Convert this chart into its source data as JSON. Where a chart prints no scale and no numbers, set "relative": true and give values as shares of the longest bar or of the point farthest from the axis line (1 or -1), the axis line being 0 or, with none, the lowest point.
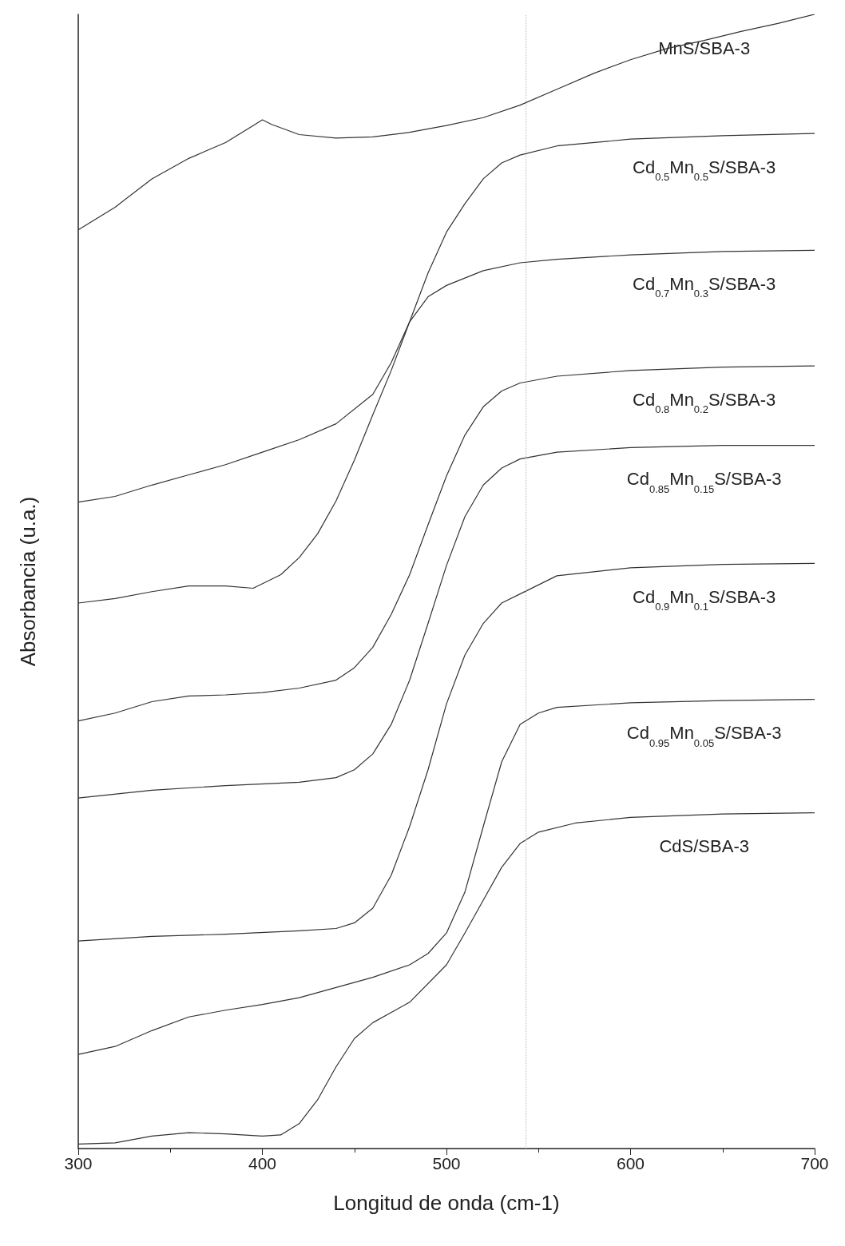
{
  "chart_data": {
    "type": "line",
    "relative": true,
    "xlabel": "Longitud de onda (cm-1)",
    "ylabel": "Absorbancia (u.a.)",
    "xlim": [
      300,
      700
    ],
    "xticks": [
      300,
      400,
      500,
      600,
      700
    ],
    "grid": false,
    "legend": false,
    "marker": "none",
    "line_style": "solid",
    "ref_lines": [
      {
        "axis": "x",
        "value": 543,
        "color": "#bbbbbb",
        "line_style": "dotted"
      }
    ],
    "series": [
      {
        "name": "MnS/SBA-3",
        "color": "#333333",
        "x": [
          300,
          320,
          340,
          360,
          380,
          395,
          400,
          405,
          420,
          440,
          460,
          480,
          500,
          520,
          540,
          560,
          580,
          600,
          620,
          640,
          660,
          680,
          700
        ],
        "values": [
          0.81,
          0.83,
          0.855,
          0.873,
          0.887,
          0.902,
          0.907,
          0.903,
          0.894,
          0.891,
          0.892,
          0.896,
          0.902,
          0.909,
          0.92,
          0.934,
          0.948,
          0.96,
          0.97,
          0.977,
          0.985,
          0.992,
          1
        ]
      },
      {
        "name": "Cd$_{0.5}$Mn$_{0.5}$S/SBA-3",
        "color": "#333333",
        "x": [
          300,
          320,
          340,
          360,
          380,
          395,
          410,
          420,
          430,
          440,
          450,
          460,
          470,
          480,
          490,
          500,
          510,
          520,
          530,
          540,
          560,
          600,
          650,
          700
        ],
        "values": [
          0.481,
          0.485,
          0.491,
          0.496,
          0.496,
          0.494,
          0.506,
          0.521,
          0.542,
          0.571,
          0.607,
          0.647,
          0.686,
          0.729,
          0.772,
          0.808,
          0.833,
          0.855,
          0.869,
          0.876,
          0.884,
          0.89,
          0.893,
          0.895
        ]
      },
      {
        "name": "Cd$_{0.7}$Mn$_{0.3}$S/SBA-3",
        "color": "#333333",
        "x": [
          300,
          320,
          340,
          360,
          380,
          400,
          420,
          440,
          460,
          470,
          480,
          490,
          500,
          520,
          540,
          560,
          600,
          650,
          700
        ],
        "values": [
          0.57,
          0.575,
          0.585,
          0.594,
          0.603,
          0.614,
          0.625,
          0.639,
          0.665,
          0.693,
          0.729,
          0.751,
          0.761,
          0.774,
          0.781,
          0.784,
          0.788,
          0.791,
          0.792
        ]
      },
      {
        "name": "Cd$_{0.8}$Mn$_{0.2}$S/SBA-3",
        "color": "#333333",
        "x": [
          300,
          320,
          340,
          360,
          380,
          400,
          420,
          440,
          450,
          460,
          470,
          480,
          490,
          500,
          510,
          520,
          530,
          540,
          560,
          600,
          650,
          700
        ],
        "values": [
          0.377,
          0.384,
          0.394,
          0.399,
          0.4,
          0.402,
          0.406,
          0.413,
          0.424,
          0.442,
          0.471,
          0.506,
          0.55,
          0.593,
          0.629,
          0.654,
          0.668,
          0.675,
          0.681,
          0.686,
          0.689,
          0.69
        ]
      },
      {
        "name": "Cd$_{0.85}$Mn$_{0.15}$S/SBA-3",
        "color": "#333333",
        "x": [
          300,
          340,
          380,
          420,
          440,
          450,
          460,
          470,
          480,
          490,
          500,
          510,
          520,
          530,
          540,
          560,
          600,
          650,
          700
        ],
        "values": [
          0.309,
          0.316,
          0.32,
          0.323,
          0.327,
          0.334,
          0.348,
          0.374,
          0.413,
          0.463,
          0.514,
          0.557,
          0.585,
          0.6,
          0.608,
          0.614,
          0.618,
          0.62,
          0.62
        ]
      },
      {
        "name": "Cd$_{0.9}$Mn$_{0.1}$S/SBA-3",
        "color": "#333333",
        "x": [
          300,
          340,
          380,
          420,
          440,
          450,
          460,
          470,
          480,
          490,
          500,
          510,
          520,
          530,
          540,
          560,
          600,
          650,
          700
        ],
        "values": [
          0.183,
          0.187,
          0.189,
          0.192,
          0.194,
          0.199,
          0.212,
          0.241,
          0.284,
          0.334,
          0.392,
          0.435,
          0.463,
          0.481,
          0.489,
          0.505,
          0.512,
          0.515,
          0.516
        ]
      },
      {
        "name": "Cd$_{0.95}$Mn$_{0.05}$S/SBA-3",
        "color": "#333333",
        "x": [
          300,
          320,
          340,
          360,
          380,
          400,
          420,
          440,
          460,
          480,
          490,
          500,
          510,
          520,
          530,
          540,
          550,
          560,
          600,
          650,
          700
        ],
        "values": [
          0.083,
          0.09,
          0.104,
          0.116,
          0.122,
          0.127,
          0.133,
          0.142,
          0.151,
          0.162,
          0.172,
          0.19,
          0.226,
          0.284,
          0.341,
          0.374,
          0.384,
          0.389,
          0.393,
          0.395,
          0.396
        ]
      },
      {
        "name": "CdS/SBA-3",
        "color": "#333333",
        "x": [
          300,
          320,
          340,
          360,
          380,
          400,
          410,
          420,
          430,
          440,
          450,
          460,
          480,
          500,
          510,
          520,
          530,
          540,
          550,
          570,
          600,
          650,
          700
        ],
        "values": [
          0.004,
          0.005,
          0.011,
          0.014,
          0.013,
          0.011,
          0.012,
          0.022,
          0.043,
          0.072,
          0.097,
          0.111,
          0.129,
          0.162,
          0.19,
          0.219,
          0.248,
          0.269,
          0.279,
          0.287,
          0.292,
          0.295,
          0.296
        ]
      }
    ]
  }
}
